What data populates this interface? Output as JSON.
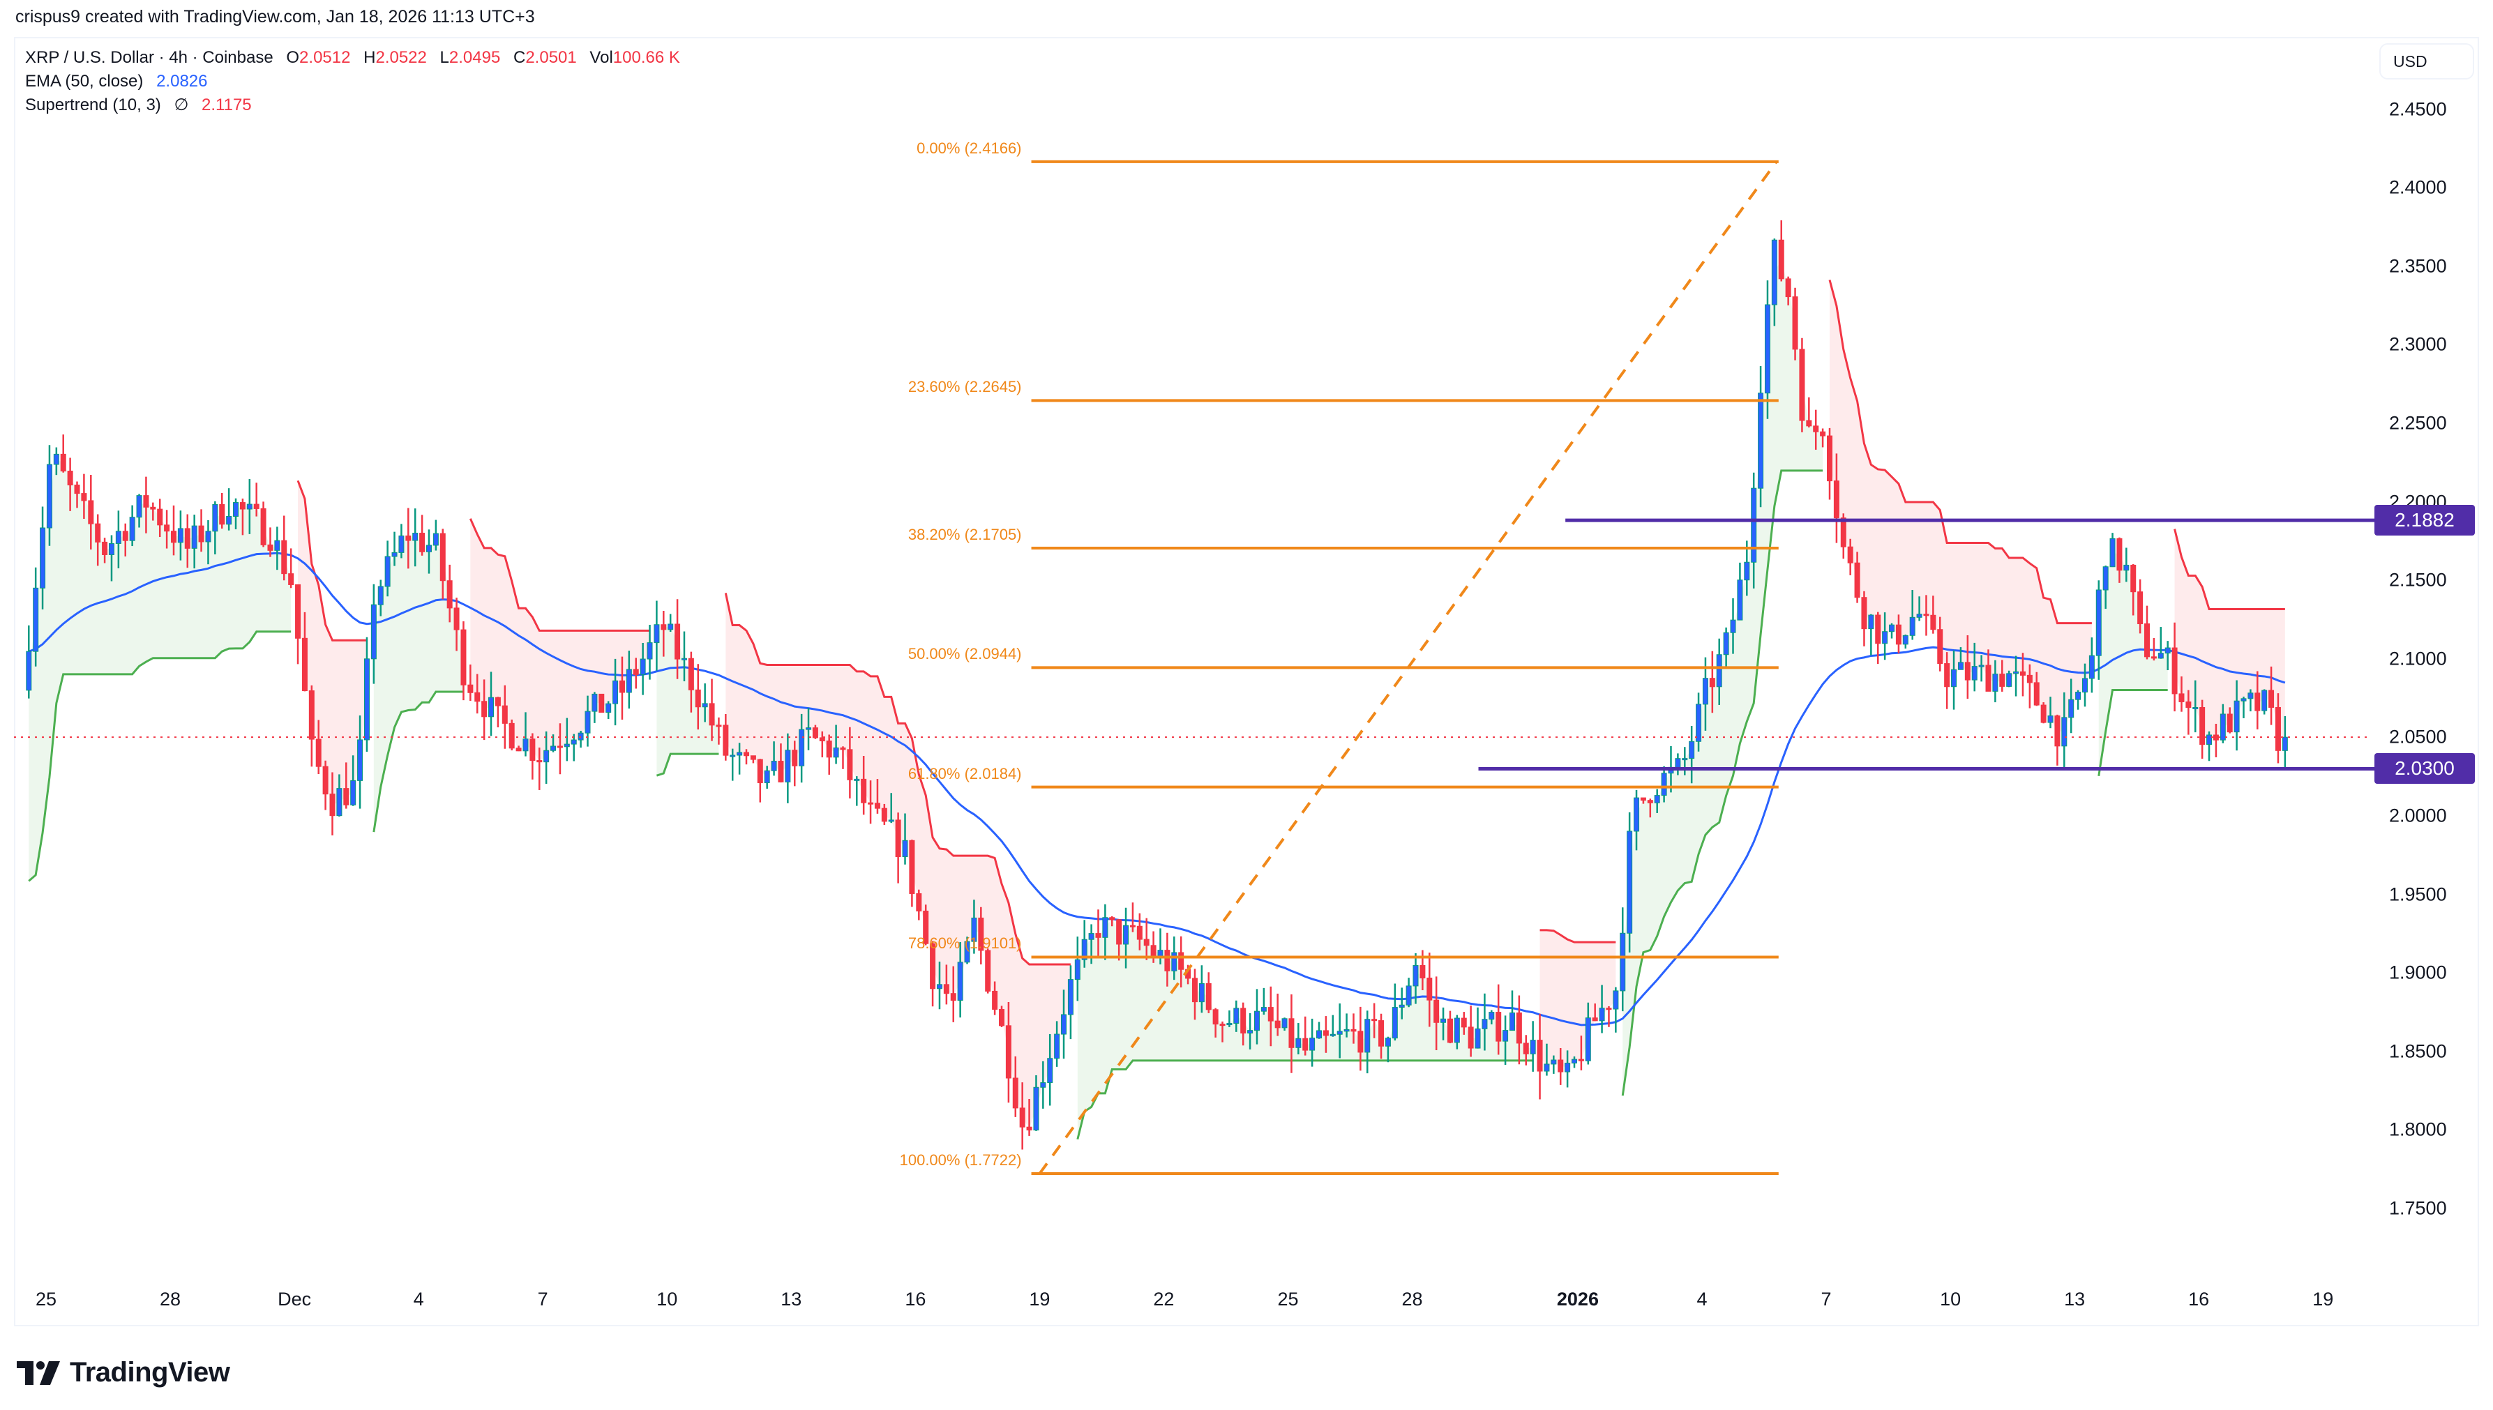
{
  "credit": "crispus9 created with TradingView.com, Jan 18, 2026 11:13 UTC+3",
  "legend": {
    "symbol": "XRP / U.S. Dollar · 4h · Coinbase",
    "open_label": "O",
    "open": "2.0512",
    "high_label": "H",
    "high": "2.0522",
    "low_label": "L",
    "low": "2.0495",
    "close_label": "C",
    "close": "2.0501",
    "vol_label": "Vol",
    "vol": "100.66 K",
    "ema_label": "EMA (50, close)",
    "ema_value": "2.0826",
    "supertrend_label": "Supertrend (10, 3)",
    "supertrend_icon": "∅",
    "supertrend_value": "2.1175"
  },
  "axis": {
    "currency": "USD",
    "y_ticks": [
      "2.4500",
      "2.4000",
      "2.3500",
      "2.3000",
      "2.2500",
      "2.2000",
      "2.1500",
      "2.1000",
      "2.0500",
      "2.0000",
      "1.9500",
      "1.9000",
      "1.8500",
      "1.8000",
      "1.7500"
    ],
    "x_ticks": [
      {
        "label": "25",
        "day": 0
      },
      {
        "label": "28",
        "day": 3
      },
      {
        "label": "Dec",
        "day": 6,
        "bold": false
      },
      {
        "label": "4",
        "day": 9
      },
      {
        "label": "7",
        "day": 12
      },
      {
        "label": "10",
        "day": 15
      },
      {
        "label": "13",
        "day": 18
      },
      {
        "label": "16",
        "day": 21
      },
      {
        "label": "19",
        "day": 24
      },
      {
        "label": "22",
        "day": 27
      },
      {
        "label": "25",
        "day": 30
      },
      {
        "label": "28",
        "day": 33
      },
      {
        "label": "2026",
        "day": 37,
        "bold": true
      },
      {
        "label": "4",
        "day": 40
      },
      {
        "label": "7",
        "day": 43
      },
      {
        "label": "10",
        "day": 46
      },
      {
        "label": "13",
        "day": 49
      },
      {
        "label": "16",
        "day": 52
      },
      {
        "label": "19",
        "day": 55
      }
    ]
  },
  "price_tags": [
    {
      "value": "2.1882",
      "price": 2.1882
    },
    {
      "value": "2.0300",
      "price": 2.03
    }
  ],
  "horizontal_lines": [
    {
      "name": "resistance-line",
      "price": 2.1882,
      "from_day": 36.7,
      "color": "#512da8"
    },
    {
      "name": "support-line",
      "price": 2.03,
      "from_day": 34.6,
      "color": "#512da8"
    }
  ],
  "current_price_line": {
    "price": 2.0501,
    "color": "#f23645"
  },
  "fibonacci": {
    "color": "#f0881a",
    "start_day": 23.8,
    "end_day": 31.8,
    "levels": [
      {
        "label": "0.00% (2.4166)",
        "price": 2.4166
      },
      {
        "label": "23.60% (2.2645)",
        "price": 2.2645
      },
      {
        "label": "38.20% (2.1705)",
        "price": 2.1705
      },
      {
        "label": "50.00% (2.0944)",
        "price": 2.0944
      },
      {
        "label": "61.80% (2.0184)",
        "price": 2.0184
      },
      {
        "label": "78.60% (1.9101)",
        "price": 1.9101
      },
      {
        "label": "100.00% (1.7722)",
        "price": 1.7722
      }
    ],
    "trend_line": {
      "from": {
        "day": 24.0,
        "price": 1.7722
      },
      "to": {
        "day": 41.8,
        "price": 2.4166
      }
    }
  },
  "colors": {
    "up_body": "#2962ff",
    "up_wick": "#089981",
    "down": "#f23645",
    "ema": "#2962ff",
    "st_up": "#4caf50",
    "st_down": "#f23645",
    "st_up_fill": "rgba(76,175,80,0.10)",
    "st_down_fill": "rgba(242,54,69,0.10)"
  },
  "brand": "TradingView",
  "chart_data": {
    "type": "candlestick",
    "title": "XRP / U.S. Dollar · 4h · Coinbase",
    "xlabel": "",
    "ylabel": "USD",
    "ylim": [
      1.73,
      2.47
    ],
    "x_range": [
      "Nov 25 2025",
      "Jan 18 2026"
    ],
    "last_bar": {
      "open": 2.0512,
      "high": 2.0522,
      "low": 2.0495,
      "close": 2.0501,
      "volume": "100.66K"
    },
    "indicators": {
      "ema_50": 2.0826,
      "supertrend_10_3": 2.1175
    },
    "price_path_anchors": [
      {
        "day": -0.5,
        "price": 2.08
      },
      {
        "day": 0.2,
        "price": 2.23
      },
      {
        "day": 0.8,
        "price": 2.2
      },
      {
        "day": 1.5,
        "price": 2.17
      },
      {
        "day": 2.5,
        "price": 2.2
      },
      {
        "day": 3.5,
        "price": 2.17
      },
      {
        "day": 4.5,
        "price": 2.2
      },
      {
        "day": 5.5,
        "price": 2.18
      },
      {
        "day": 6.0,
        "price": 2.15
      },
      {
        "day": 6.5,
        "price": 2.04
      },
      {
        "day": 7.0,
        "price": 2.01
      },
      {
        "day": 7.6,
        "price": 2.02
      },
      {
        "day": 8.0,
        "price": 2.14
      },
      {
        "day": 8.8,
        "price": 2.18
      },
      {
        "day": 9.5,
        "price": 2.17
      },
      {
        "day": 10.2,
        "price": 2.09
      },
      {
        "day": 11.0,
        "price": 2.06
      },
      {
        "day": 12.0,
        "price": 2.04
      },
      {
        "day": 13.0,
        "price": 2.06
      },
      {
        "day": 14.0,
        "price": 2.08
      },
      {
        "day": 15.0,
        "price": 2.12
      },
      {
        "day": 15.8,
        "price": 2.08
      },
      {
        "day": 16.5,
        "price": 2.04
      },
      {
        "day": 17.5,
        "price": 2.02
      },
      {
        "day": 18.5,
        "price": 2.05
      },
      {
        "day": 19.2,
        "price": 2.04
      },
      {
        "day": 20.0,
        "price": 2.0
      },
      {
        "day": 20.8,
        "price": 1.98
      },
      {
        "day": 21.5,
        "price": 1.9
      },
      {
        "day": 22.0,
        "price": 1.88
      },
      {
        "day": 22.5,
        "price": 1.93
      },
      {
        "day": 23.2,
        "price": 1.86
      },
      {
        "day": 23.7,
        "price": 1.8
      },
      {
        "day": 24.2,
        "price": 1.84
      },
      {
        "day": 24.8,
        "price": 1.89
      },
      {
        "day": 25.5,
        "price": 1.93
      },
      {
        "day": 26.5,
        "price": 1.92
      },
      {
        "day": 27.5,
        "price": 1.9
      },
      {
        "day": 28.5,
        "price": 1.87
      },
      {
        "day": 29.5,
        "price": 1.87
      },
      {
        "day": 30.5,
        "price": 1.85
      },
      {
        "day": 31.5,
        "price": 1.86
      },
      {
        "day": 32.5,
        "price": 1.86
      },
      {
        "day": 33.2,
        "price": 1.91
      },
      {
        "day": 33.6,
        "price": 1.87
      },
      {
        "day": 34.5,
        "price": 1.86
      },
      {
        "day": 35.5,
        "price": 1.87
      },
      {
        "day": 36.3,
        "price": 1.84
      },
      {
        "day": 36.8,
        "price": 1.83
      },
      {
        "day": 37.5,
        "price": 1.87
      },
      {
        "day": 38.0,
        "price": 1.89
      },
      {
        "day": 38.4,
        "price": 2.0
      },
      {
        "day": 38.9,
        "price": 2.02
      },
      {
        "day": 39.6,
        "price": 2.03
      },
      {
        "day": 40.2,
        "price": 2.08
      },
      {
        "day": 40.7,
        "price": 2.11
      },
      {
        "day": 41.2,
        "price": 2.17
      },
      {
        "day": 41.5,
        "price": 2.28
      },
      {
        "day": 41.8,
        "price": 2.36
      },
      {
        "day": 42.2,
        "price": 2.33
      },
      {
        "day": 42.6,
        "price": 2.24
      },
      {
        "day": 43.0,
        "price": 2.25
      },
      {
        "day": 43.5,
        "price": 2.17
      },
      {
        "day": 44.0,
        "price": 2.13
      },
      {
        "day": 44.6,
        "price": 2.11
      },
      {
        "day": 45.3,
        "price": 2.13
      },
      {
        "day": 46.0,
        "price": 2.09
      },
      {
        "day": 46.8,
        "price": 2.09
      },
      {
        "day": 47.5,
        "price": 2.09
      },
      {
        "day": 48.3,
        "price": 2.07
      },
      {
        "day": 48.8,
        "price": 2.05
      },
      {
        "day": 49.5,
        "price": 2.1
      },
      {
        "day": 49.8,
        "price": 2.17
      },
      {
        "day": 50.3,
        "price": 2.16
      },
      {
        "day": 50.7,
        "price": 2.11
      },
      {
        "day": 51.3,
        "price": 2.1
      },
      {
        "day": 51.8,
        "price": 2.07
      },
      {
        "day": 52.3,
        "price": 2.05
      },
      {
        "day": 52.8,
        "price": 2.06
      },
      {
        "day": 53.3,
        "price": 2.07
      },
      {
        "day": 53.7,
        "price": 2.07
      },
      {
        "day": 54.0,
        "price": 2.0501
      }
    ]
  }
}
